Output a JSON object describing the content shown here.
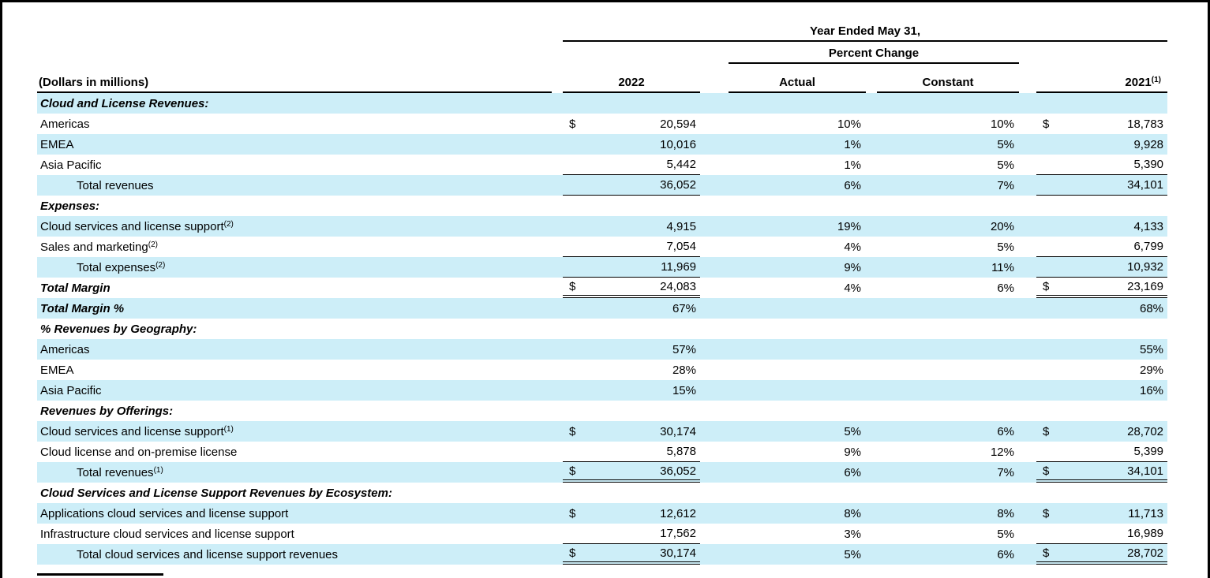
{
  "page": {
    "shade_color": "#cdeef8",
    "border_color": "#000000"
  },
  "table": {
    "header": {
      "year_ended": "Year Ended May 31,",
      "percent_change": "Percent Change",
      "dollars_label": "(Dollars in millions)",
      "col_2022": "2022",
      "col_actual": "Actual",
      "col_constant": "Constant",
      "col_2021": "2021",
      "col_2021_sup": "(1)"
    },
    "rows": [
      {
        "label": "Cloud and License Revenues:",
        "sup": "",
        "type": "section",
        "indent": 0,
        "shaded": true,
        "d22": "",
        "v22": "",
        "act": "",
        "con": "",
        "d21": "",
        "v21": "",
        "rule": "none"
      },
      {
        "label": "Americas",
        "sup": "",
        "type": "item",
        "indent": 0,
        "shaded": false,
        "d22": "$",
        "v22": "20,594",
        "act": "10%",
        "con": "10%",
        "d21": "$",
        "v21": "18,783",
        "rule": "none"
      },
      {
        "label": "EMEA",
        "sup": "",
        "type": "item",
        "indent": 0,
        "shaded": true,
        "d22": "",
        "v22": "10,016",
        "act": "1%",
        "con": "5%",
        "d21": "",
        "v21": "9,928",
        "rule": "none"
      },
      {
        "label": "Asia Pacific",
        "sup": "",
        "type": "item",
        "indent": 0,
        "shaded": false,
        "d22": "",
        "v22": "5,442",
        "act": "1%",
        "con": "5%",
        "d21": "",
        "v21": "5,390",
        "rule": "single"
      },
      {
        "label": "Total revenues",
        "sup": "",
        "type": "item",
        "indent": 1,
        "shaded": true,
        "d22": "",
        "v22": "36,052",
        "act": "6%",
        "con": "7%",
        "d21": "",
        "v21": "34,101",
        "rule": "single"
      },
      {
        "label": "Expenses:",
        "sup": "",
        "type": "section",
        "indent": 0,
        "shaded": false,
        "d22": "",
        "v22": "",
        "act": "",
        "con": "",
        "d21": "",
        "v21": "",
        "rule": "none"
      },
      {
        "label": "Cloud services and license support",
        "sup": "(2)",
        "type": "item",
        "indent": 0,
        "shaded": true,
        "d22": "",
        "v22": "4,915",
        "act": "19%",
        "con": "20%",
        "d21": "",
        "v21": "4,133",
        "rule": "none"
      },
      {
        "label": "Sales and marketing",
        "sup": "(2)",
        "type": "item",
        "indent": 0,
        "shaded": false,
        "d22": "",
        "v22": "7,054",
        "act": "4%",
        "con": "5%",
        "d21": "",
        "v21": "6,799",
        "rule": "single"
      },
      {
        "label": "Total expenses",
        "sup": "(2)",
        "type": "item",
        "indent": 1,
        "shaded": true,
        "d22": "",
        "v22": "11,969",
        "act": "9%",
        "con": "11%",
        "d21": "",
        "v21": "10,932",
        "rule": "single"
      },
      {
        "label": "Total Margin",
        "sup": "",
        "type": "section",
        "indent": 0,
        "shaded": false,
        "d22": "$",
        "v22": "24,083",
        "act": "4%",
        "con": "6%",
        "d21": "$",
        "v21": "23,169",
        "rule": "double"
      },
      {
        "label": "Total Margin %",
        "sup": "",
        "type": "section",
        "indent": 0,
        "shaded": true,
        "d22": "",
        "v22": "67%",
        "act": "",
        "con": "",
        "d21": "",
        "v21": "68%",
        "rule": "none"
      },
      {
        "label": "% Revenues by Geography:",
        "sup": "",
        "type": "section",
        "indent": 0,
        "shaded": false,
        "d22": "",
        "v22": "",
        "act": "",
        "con": "",
        "d21": "",
        "v21": "",
        "rule": "none"
      },
      {
        "label": "Americas",
        "sup": "",
        "type": "item",
        "indent": 0,
        "shaded": true,
        "d22": "",
        "v22": "57%",
        "act": "",
        "con": "",
        "d21": "",
        "v21": "55%",
        "rule": "none"
      },
      {
        "label": "EMEA",
        "sup": "",
        "type": "item",
        "indent": 0,
        "shaded": false,
        "d22": "",
        "v22": "28%",
        "act": "",
        "con": "",
        "d21": "",
        "v21": "29%",
        "rule": "none"
      },
      {
        "label": "Asia Pacific",
        "sup": "",
        "type": "item",
        "indent": 0,
        "shaded": true,
        "d22": "",
        "v22": "15%",
        "act": "",
        "con": "",
        "d21": "",
        "v21": "16%",
        "rule": "none"
      },
      {
        "label": "Revenues by Offerings:",
        "sup": "",
        "type": "section",
        "indent": 0,
        "shaded": false,
        "d22": "",
        "v22": "",
        "act": "",
        "con": "",
        "d21": "",
        "v21": "",
        "rule": "none"
      },
      {
        "label": "Cloud services and license support",
        "sup": "(1)",
        "type": "item",
        "indent": 0,
        "shaded": true,
        "d22": "$",
        "v22": "30,174",
        "act": "5%",
        "con": "6%",
        "d21": "$",
        "v21": "28,702",
        "rule": "none"
      },
      {
        "label": "Cloud license and on-premise license",
        "sup": "",
        "type": "item",
        "indent": 0,
        "shaded": false,
        "d22": "",
        "v22": "5,878",
        "act": "9%",
        "con": "12%",
        "d21": "",
        "v21": "5,399",
        "rule": "single"
      },
      {
        "label": "Total revenues",
        "sup": "(1)",
        "type": "item",
        "indent": 1,
        "shaded": true,
        "d22": "$",
        "v22": "36,052",
        "act": "6%",
        "con": "7%",
        "d21": "$",
        "v21": "34,101",
        "rule": "double"
      },
      {
        "label": "Cloud Services and License Support Revenues by Ecosystem:",
        "sup": "",
        "type": "section",
        "indent": 0,
        "shaded": false,
        "d22": "",
        "v22": "",
        "act": "",
        "con": "",
        "d21": "",
        "v21": "",
        "rule": "none"
      },
      {
        "label": "Applications cloud services and license support",
        "sup": "",
        "type": "item",
        "indent": 0,
        "shaded": true,
        "d22": "$",
        "v22": "12,612",
        "act": "8%",
        "con": "8%",
        "d21": "$",
        "v21": "11,713",
        "rule": "none"
      },
      {
        "label": "Infrastructure cloud services and license support",
        "sup": "",
        "type": "item",
        "indent": 0,
        "shaded": false,
        "d22": "",
        "v22": "17,562",
        "act": "3%",
        "con": "5%",
        "d21": "",
        "v21": "16,989",
        "rule": "single"
      },
      {
        "label": "Total cloud services and license support revenues",
        "sup": "",
        "type": "item",
        "indent": 1,
        "shaded": true,
        "d22": "$",
        "v22": "30,174",
        "act": "5%",
        "con": "6%",
        "d21": "$",
        "v21": "28,702",
        "rule": "double"
      }
    ]
  }
}
